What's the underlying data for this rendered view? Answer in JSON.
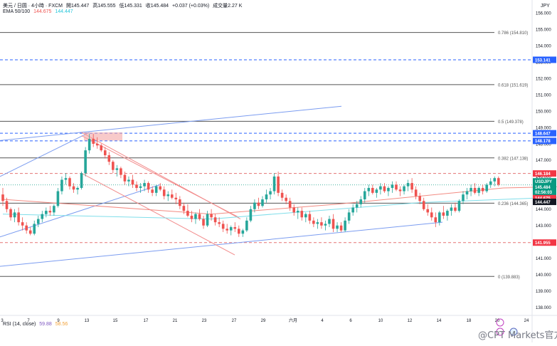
{
  "header": {
    "symbol": "美元 / 日圆 · 4小時 · FXCM",
    "open_label": "開",
    "open": "145.447",
    "high_label": "高",
    "high": "145.555",
    "low_label": "低",
    "low": "145.331",
    "close_label": "收",
    "close": "145.484",
    "change": "+0.037 (+0.03%)",
    "volume_label": "成交量",
    "volume": "2.27 K",
    "ema_label": "EMA 50/100",
    "ema50": "144.675",
    "ema100": "144.447"
  },
  "rsi": {
    "label": "RSI (14, close)",
    "value1": "59.88",
    "value2": "58.56"
  },
  "currency_label": "JPY",
  "watermark": "@CPT Markets官方",
  "colors": {
    "up": "#26a69a",
    "down": "#ef5350",
    "ema50": "#f28b82",
    "ema100": "#80deea",
    "trend": "#7b9cf0",
    "channel": "#f28b8b",
    "fib": "#555555",
    "blue_dash": "#2962ff",
    "red_dash": "#e57373",
    "badge_red": "#f23645",
    "badge_blue": "#2962ff",
    "badge_green": "#089981",
    "badge_black": "#131722"
  },
  "chart_data": {
    "type": "candlestick",
    "symbol": "USDJPY",
    "timeframe": "4H",
    "ylim": [
      137.5,
      156.8
    ],
    "y_ticks": [
      "156.000",
      "155.000",
      "154.000",
      "153.000",
      "152.000",
      "151.000",
      "150.000",
      "149.000",
      "148.000",
      "147.000",
      "146.000",
      "145.000",
      "144.000",
      "143.000",
      "142.000",
      "141.000",
      "140.000",
      "139.000",
      "138.000"
    ],
    "x_ticks": [
      "3",
      "7",
      "9",
      "13",
      "15",
      "17",
      "21",
      "23",
      "27",
      "29",
      "六月",
      "4",
      "6",
      "10",
      "12",
      "14",
      "18",
      "20",
      "24"
    ],
    "fib_levels": [
      {
        "ratio": "0.786",
        "price": "154.810"
      },
      {
        "ratio": "0.618",
        "price": "151.619"
      },
      {
        "ratio": "0.5",
        "price": "149.378"
      },
      {
        "ratio": "0.382",
        "price": "147.138"
      },
      {
        "ratio": "0.236",
        "price": "144.365"
      },
      {
        "ratio": "0",
        "price": "139.883"
      }
    ],
    "horizontal_levels": [
      {
        "price": "153.141",
        "style": "blue-dashed"
      },
      {
        "price": "148.647",
        "style": "blue-dashed"
      },
      {
        "price": "148.178",
        "style": "blue-dashed"
      },
      {
        "price": "146.184",
        "style": "red-dashed"
      },
      {
        "price": "141.955",
        "style": "red-dashed"
      }
    ],
    "price_badges": [
      {
        "text": "USDJPY",
        "price": 145.484,
        "style": "green"
      },
      {
        "text": "145.484",
        "price": 145.484,
        "style": "green"
      },
      {
        "text": "02:56:03",
        "price": 145.13,
        "style": "green"
      },
      {
        "text": "144.675",
        "price": 144.675,
        "style": "red"
      },
      {
        "text": "144.447",
        "price": 144.447,
        "style": "black"
      }
    ],
    "candles": [
      [
        144.9,
        145.3,
        144.2,
        144.5
      ],
      [
        144.5,
        144.7,
        143.8,
        144.0
      ],
      [
        144.0,
        144.1,
        143.3,
        143.5
      ],
      [
        143.5,
        144.0,
        143.2,
        143.8
      ],
      [
        143.8,
        144.1,
        143.0,
        143.2
      ],
      [
        143.2,
        143.5,
        142.7,
        143.0
      ],
      [
        143.0,
        143.2,
        142.5,
        142.7
      ],
      [
        142.7,
        142.9,
        142.4,
        142.5
      ],
      [
        142.5,
        143.3,
        142.4,
        143.1
      ],
      [
        143.1,
        143.6,
        142.9,
        143.4
      ],
      [
        143.4,
        143.9,
        143.2,
        143.7
      ],
      [
        143.7,
        144.1,
        143.5,
        143.9
      ],
      [
        143.9,
        144.2,
        143.6,
        143.8
      ],
      [
        143.8,
        144.3,
        143.6,
        144.2
      ],
      [
        144.2,
        145.3,
        144.1,
        145.1
      ],
      [
        145.1,
        146.0,
        144.9,
        145.8
      ],
      [
        145.8,
        146.2,
        145.5,
        145.9
      ],
      [
        145.9,
        146.0,
        145.2,
        145.4
      ],
      [
        145.4,
        145.6,
        145.0,
        145.2
      ],
      [
        145.2,
        145.4,
        144.9,
        145.3
      ],
      [
        145.3,
        146.3,
        145.2,
        146.2
      ],
      [
        146.2,
        147.8,
        146.0,
        147.6
      ],
      [
        147.6,
        148.6,
        147.4,
        148.3
      ],
      [
        148.3,
        148.6,
        147.8,
        148.0
      ],
      [
        148.0,
        148.4,
        147.7,
        147.9
      ],
      [
        147.9,
        148.0,
        147.5,
        147.6
      ],
      [
        147.6,
        147.8,
        147.1,
        147.3
      ],
      [
        147.3,
        147.5,
        146.7,
        146.9
      ],
      [
        146.9,
        147.0,
        146.2,
        146.4
      ],
      [
        146.4,
        146.7,
        146.0,
        146.5
      ],
      [
        146.5,
        146.6,
        145.9,
        146.1
      ],
      [
        146.1,
        146.3,
        145.5,
        145.7
      ],
      [
        145.7,
        146.0,
        145.4,
        145.8
      ],
      [
        145.8,
        146.1,
        145.3,
        145.5
      ],
      [
        145.5,
        145.7,
        145.1,
        145.3
      ],
      [
        145.3,
        145.6,
        145.0,
        145.4
      ],
      [
        145.4,
        145.8,
        145.1,
        145.6
      ],
      [
        145.6,
        145.7,
        145.0,
        145.2
      ],
      [
        145.2,
        145.4,
        144.8,
        145.0
      ],
      [
        145.0,
        145.5,
        144.8,
        145.4
      ],
      [
        145.4,
        145.6,
        145.1,
        145.2
      ],
      [
        145.2,
        145.4,
        144.6,
        144.8
      ],
      [
        144.8,
        145.1,
        144.5,
        144.9
      ],
      [
        144.9,
        145.2,
        144.6,
        144.7
      ],
      [
        144.7,
        145.0,
        144.3,
        144.6
      ],
      [
        144.6,
        144.8,
        144.0,
        144.2
      ],
      [
        144.2,
        144.4,
        143.7,
        143.9
      ],
      [
        143.9,
        144.3,
        143.5,
        143.6
      ],
      [
        143.6,
        143.9,
        143.2,
        143.4
      ],
      [
        143.4,
        143.8,
        143.1,
        143.7
      ],
      [
        143.7,
        144.0,
        143.3,
        143.4
      ],
      [
        143.4,
        143.6,
        142.8,
        143.0
      ],
      [
        143.0,
        143.9,
        142.9,
        143.7
      ],
      [
        143.7,
        144.0,
        143.3,
        143.5
      ],
      [
        143.5,
        143.7,
        143.0,
        143.2
      ],
      [
        143.2,
        143.5,
        142.9,
        143.1
      ],
      [
        143.1,
        143.3,
        142.6,
        142.8
      ],
      [
        142.8,
        143.1,
        142.5,
        142.7
      ],
      [
        142.7,
        143.0,
        142.4,
        142.9
      ],
      [
        142.9,
        143.2,
        142.6,
        142.8
      ],
      [
        142.8,
        143.0,
        142.3,
        142.5
      ],
      [
        142.5,
        142.8,
        142.3,
        142.7
      ],
      [
        142.7,
        143.5,
        142.6,
        143.3
      ],
      [
        143.3,
        144.2,
        143.2,
        144.0
      ],
      [
        144.0,
        144.6,
        143.8,
        144.4
      ],
      [
        144.4,
        144.7,
        144.0,
        144.2
      ],
      [
        144.2,
        144.8,
        144.1,
        144.6
      ],
      [
        144.6,
        145.2,
        144.4,
        144.9
      ],
      [
        144.9,
        145.3,
        144.6,
        145.1
      ],
      [
        145.1,
        146.2,
        144.9,
        146.0
      ],
      [
        146.0,
        146.3,
        144.8,
        145.0
      ],
      [
        145.0,
        145.2,
        144.5,
        144.7
      ],
      [
        144.7,
        144.9,
        144.3,
        144.5
      ],
      [
        144.5,
        144.7,
        143.9,
        144.1
      ],
      [
        144.1,
        144.3,
        143.6,
        143.8
      ],
      [
        143.8,
        144.1,
        143.4,
        143.9
      ],
      [
        143.9,
        144.1,
        143.3,
        143.5
      ],
      [
        143.5,
        143.8,
        143.2,
        143.7
      ],
      [
        143.7,
        143.9,
        143.1,
        143.3
      ],
      [
        143.3,
        143.5,
        142.9,
        143.1
      ],
      [
        143.1,
        143.4,
        142.8,
        143.2
      ],
      [
        143.2,
        143.5,
        142.8,
        143.0
      ],
      [
        143.0,
        143.3,
        142.7,
        143.1
      ],
      [
        143.1,
        143.6,
        142.9,
        143.4
      ],
      [
        143.4,
        143.7,
        142.6,
        142.8
      ],
      [
        142.8,
        143.2,
        142.6,
        143.0
      ],
      [
        143.0,
        143.2,
        142.6,
        142.7
      ],
      [
        142.7,
        143.5,
        142.6,
        143.3
      ],
      [
        143.3,
        144.0,
        143.1,
        143.8
      ],
      [
        143.8,
        144.3,
        143.6,
        144.1
      ],
      [
        144.1,
        144.5,
        143.8,
        144.3
      ],
      [
        144.3,
        144.8,
        144.1,
        144.6
      ],
      [
        144.6,
        145.3,
        144.4,
        145.1
      ],
      [
        145.1,
        145.5,
        144.8,
        145.3
      ],
      [
        145.3,
        145.5,
        144.9,
        145.0
      ],
      [
        145.0,
        145.3,
        144.7,
        145.2
      ],
      [
        145.2,
        145.6,
        144.9,
        145.4
      ],
      [
        145.4,
        145.6,
        145.0,
        145.1
      ],
      [
        145.1,
        145.4,
        144.8,
        145.3
      ],
      [
        145.3,
        145.7,
        145.0,
        145.5
      ],
      [
        145.5,
        145.7,
        145.1,
        145.2
      ],
      [
        145.2,
        145.4,
        144.8,
        145.1
      ],
      [
        145.1,
        145.5,
        144.9,
        145.4
      ],
      [
        145.4,
        145.8,
        145.1,
        145.6
      ],
      [
        145.6,
        145.9,
        145.0,
        145.2
      ],
      [
        145.2,
        145.4,
        144.6,
        144.8
      ],
      [
        144.8,
        145.0,
        144.3,
        144.5
      ],
      [
        144.5,
        144.7,
        143.9,
        144.0
      ],
      [
        144.0,
        144.3,
        143.6,
        143.8
      ],
      [
        143.8,
        144.1,
        143.3,
        143.5
      ],
      [
        143.5,
        143.8,
        142.9,
        143.2
      ],
      [
        143.2,
        143.9,
        143.0,
        143.8
      ],
      [
        143.8,
        144.2,
        143.4,
        143.6
      ],
      [
        143.6,
        144.0,
        143.3,
        143.9
      ],
      [
        143.9,
        144.3,
        143.6,
        144.1
      ],
      [
        144.1,
        144.4,
        143.8,
        143.9
      ],
      [
        143.9,
        144.6,
        143.8,
        144.5
      ],
      [
        144.5,
        145.1,
        144.3,
        144.9
      ],
      [
        144.9,
        145.3,
        144.6,
        145.1
      ],
      [
        145.1,
        145.5,
        144.8,
        145.3
      ],
      [
        145.3,
        145.6,
        144.9,
        145.0
      ],
      [
        145.0,
        145.4,
        144.8,
        145.3
      ],
      [
        145.3,
        145.5,
        144.9,
        145.1
      ],
      [
        145.1,
        145.6,
        145.0,
        145.5
      ],
      [
        145.5,
        145.9,
        145.3,
        145.7
      ],
      [
        145.7,
        146.0,
        145.4,
        145.9
      ],
      [
        145.9,
        146.0,
        145.4,
        145.5
      ]
    ],
    "ema50": [
      [
        0,
        144.6
      ],
      [
        10,
        143.7
      ],
      [
        16,
        144.3
      ],
      [
        24,
        145.3
      ],
      [
        34,
        145.6
      ],
      [
        44,
        145.2
      ],
      [
        54,
        144.5
      ],
      [
        64,
        143.8
      ],
      [
        74,
        144.1
      ],
      [
        84,
        143.8
      ],
      [
        92,
        143.6
      ],
      [
        100,
        144.0
      ],
      [
        108,
        144.3
      ],
      [
        116,
        144.2
      ],
      [
        122,
        144.4
      ],
      [
        126,
        144.6
      ]
    ],
    "ema100": [
      [
        0,
        143.7
      ],
      [
        10,
        143.4
      ],
      [
        20,
        144.4
      ],
      [
        30,
        144.9
      ],
      [
        40,
        145.0
      ],
      [
        50,
        144.7
      ],
      [
        60,
        144.3
      ],
      [
        70,
        144.0
      ],
      [
        80,
        143.8
      ],
      [
        90,
        143.7
      ],
      [
        100,
        143.9
      ],
      [
        110,
        144.1
      ],
      [
        120,
        144.3
      ],
      [
        126,
        144.45
      ]
    ]
  }
}
